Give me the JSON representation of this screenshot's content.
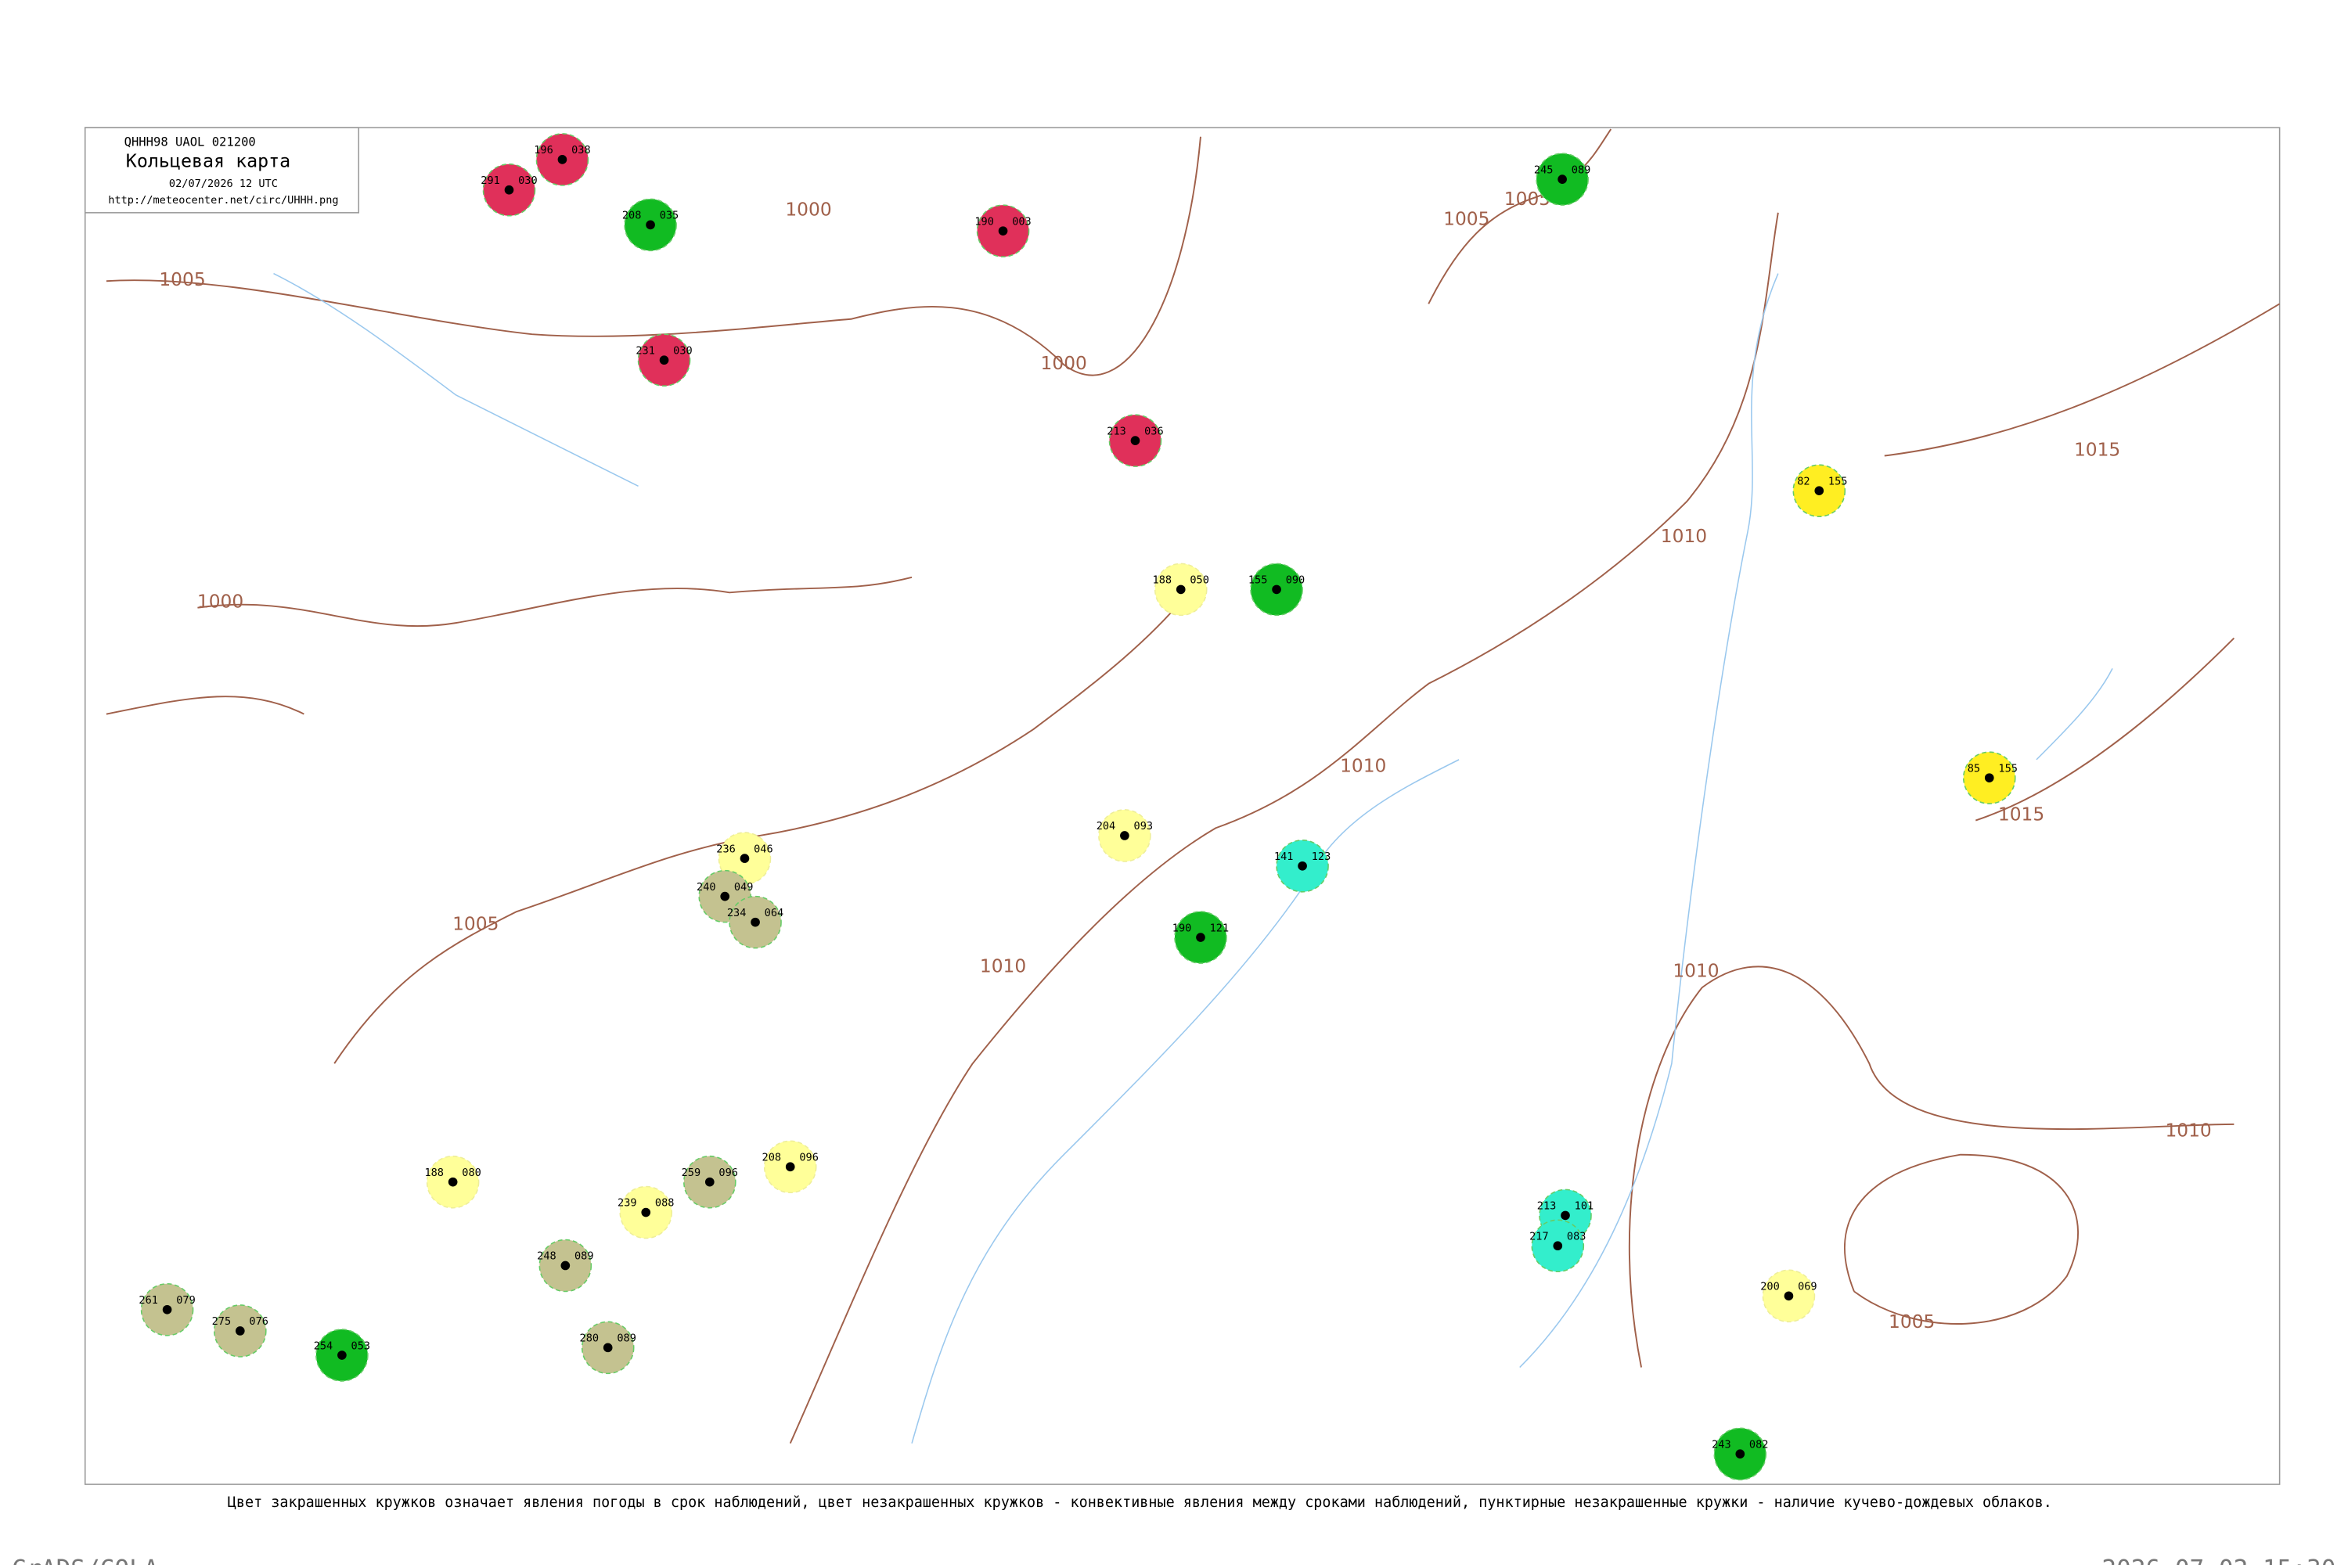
{
  "header": {
    "code": "QHHH98  UAOL  021200",
    "title": "Кольцевая карта",
    "datetime": "02/07/2026 12 UTC",
    "url": "http://meteocenter.net/circ/UHHH.png"
  },
  "isobar_labels": [
    "1005",
    "1000",
    "1005",
    "1005",
    "1000",
    "1005",
    "1010",
    "1010",
    "1010",
    "1010",
    "1015",
    "1015",
    "1010",
    "1005",
    "1000"
  ],
  "stations": [
    {
      "pressure": "291",
      "temp": "030"
    },
    {
      "pressure": "196",
      "temp": "038"
    },
    {
      "pressure": "208",
      "temp": "035"
    },
    {
      "pressure": "231",
      "temp": "030"
    },
    {
      "pressure": "190",
      "temp": "003"
    },
    {
      "pressure": "213",
      "temp": "036"
    },
    {
      "pressure": "155",
      "temp": "090"
    },
    {
      "pressure": "245",
      "temp": "089"
    },
    {
      "pressure": "236",
      "temp": "046"
    },
    {
      "pressure": "240",
      "temp": "049"
    },
    {
      "pressure": "234",
      "temp": "064"
    },
    {
      "pressure": "204",
      "temp": "093"
    },
    {
      "pressure": "188",
      "temp": "050"
    },
    {
      "pressure": "208",
      "temp": "096"
    },
    {
      "pressure": "188",
      "temp": "080"
    },
    {
      "pressure": "239",
      "temp": "088"
    },
    {
      "pressure": "259",
      "temp": "096"
    },
    {
      "pressure": "248",
      "temp": "089"
    },
    {
      "pressure": "280",
      "temp": "089"
    },
    {
      "pressure": "261",
      "temp": "079"
    },
    {
      "pressure": "275",
      "temp": "076"
    },
    {
      "pressure": "82",
      "temp": "155"
    },
    {
      "pressure": "85",
      "temp": "155"
    },
    {
      "pressure": "200",
      "temp": "069"
    },
    {
      "pressure": "141",
      "temp": "123"
    },
    {
      "pressure": "190",
      "temp": "121"
    },
    {
      "pressure": "213",
      "temp": "101"
    },
    {
      "pressure": "217",
      "temp": "083"
    },
    {
      "pressure": "254",
      "temp": "053"
    },
    {
      "pressure": "243",
      "temp": "082"
    }
  ],
  "caption": "Цвет закрашенных кружков означает явления погоды в срок наблюдений, цвет незакрашенных кружков - конвективные явления между сроками наблюдений, пунктирные незакрашенные кружки - наличие кучево-дождевых облаков.",
  "footer": {
    "left": "GrADS/COLA",
    "right": "2026-07-02-15:30"
  }
}
